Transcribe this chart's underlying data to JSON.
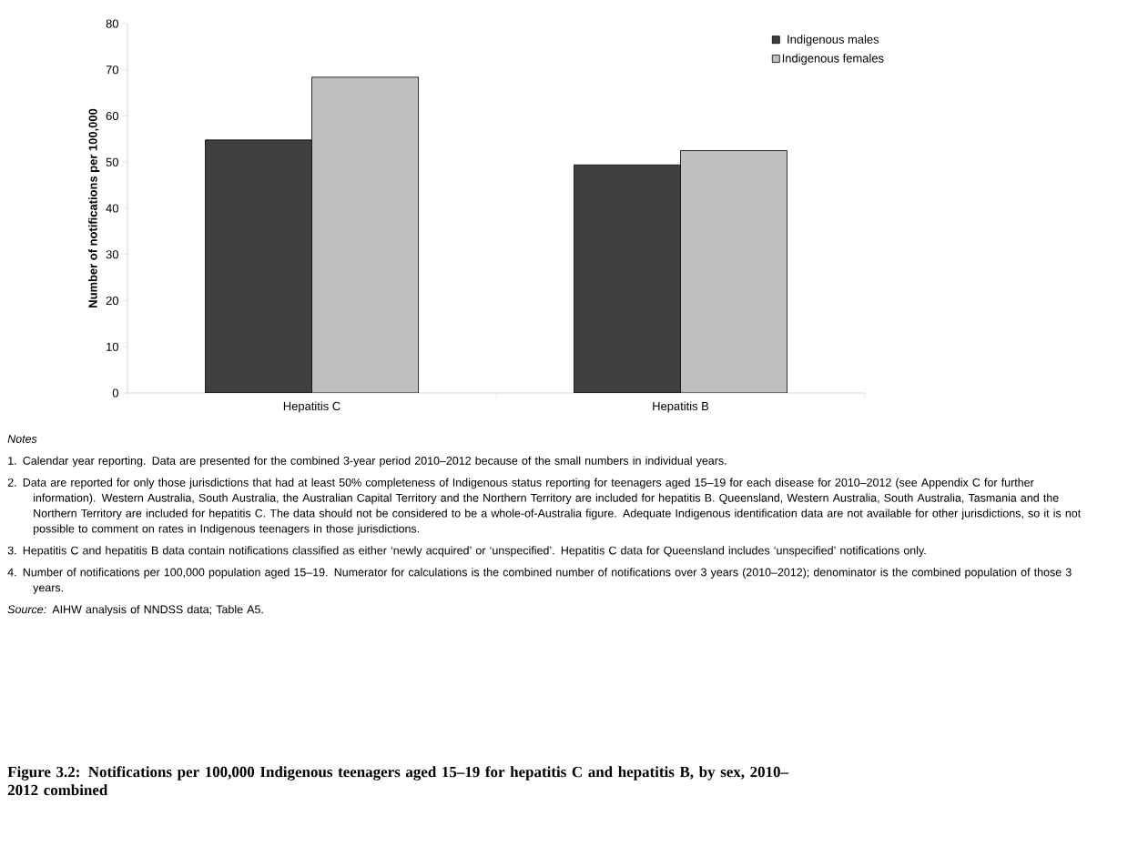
{
  "chart_data": {
    "type": "bar",
    "title": "Figure 3.2: Notifications per 100,000 Indigenous teenagers aged 15–19  for hepatitis C and hepatitis B, by sex, 2010–2012 combined",
    "ylabel": "Number of notifications per 100,000",
    "categories": [
      "Hepatitis C",
      "Hepatitis B"
    ],
    "series": [
      {
        "name": "Indigenous males",
        "color": "#404040",
        "values": [
          54.8,
          49.4
        ]
      },
      {
        "name": "Indigenous females",
        "color": "#bfbfbf",
        "values": [
          68.4,
          52.5
        ]
      }
    ],
    "ylim": [
      0,
      80
    ],
    "yticks": [
      0,
      10,
      20,
      30,
      40,
      50,
      60,
      70,
      80
    ],
    "grid": false,
    "legend": "top right",
    "annotations": [
      "*Notes*",
      "1. Calendar year reporting. Data are presented for the combined 3-year period 2010–2012 because of the small numbers in individual years.",
      "2. Data are reported for only those jurisdictions that had at least 50% completeness of Indigenous status reporting for teenagers aged 15–19 for each disease for 2010–2012 (see Appendix C for further information). Western Australia, South Australia, the Australian Capital Territory and the Northern Territory are included for hepatitis B. Queensland, Western Australia, South Australia, Tasmania and the Northern Territory are included for hepatitis C. The data should not be considered to be a whole-of-Australia figure. Adequate Indigenous identification data are not available for other jurisdictions, so it is not possible to comment on rates in Indigenous teenagers in those jurisdictions.",
      "3. Hepatitis C and hepatitis B data contain notifications classified as either ‘newly acquired’ or ‘unspecified’. Hepatitis C data for Queensland includes ‘unspecified’ notifications only.",
      "4. Number of notifications per 100,000 population aged 15–19. Numerator for calculations is the combined number of notifications over 3 years (2010–2012); denominator is the combined population of those 3 years.",
      "*Source:* AIHW analysis of NNDSS data; Table A5."
    ]
  }
}
